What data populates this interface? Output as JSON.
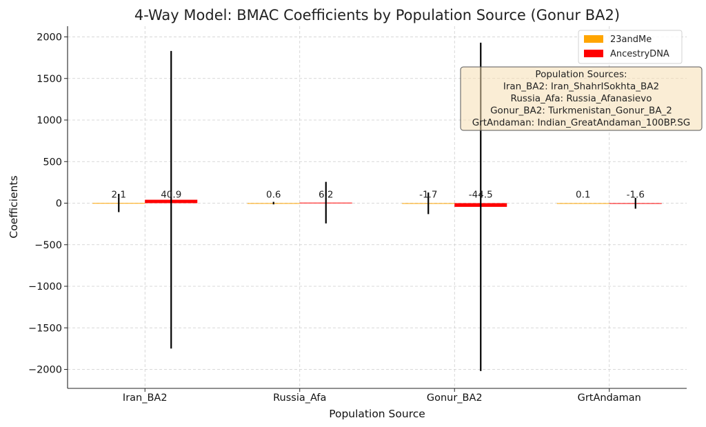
{
  "chart_data": {
    "type": "bar",
    "title": "4-Way Model: BMAC Coefficients by Population Source (Gonur BA2)",
    "xlabel": "Population Source",
    "ylabel": "Coefficients",
    "categories": [
      "Iran_BA2",
      "Russia_Afa",
      "Gonur_BA2",
      "GrtAndaman"
    ],
    "ylim": [
      -2200,
      2200
    ],
    "yticks": [
      -2000,
      -1500,
      -1000,
      -500,
      0,
      500,
      1000,
      1500,
      2000
    ],
    "ytick_labels": [
      "−2000",
      "−1500",
      "−1000",
      "−500",
      "0",
      "500",
      "1000",
      "1500",
      "2000"
    ],
    "grid": true,
    "legend_position": "top-right",
    "series": [
      {
        "name": "23andMe",
        "color": "#FFA500",
        "values": [
          2.1,
          0.6,
          -1.7,
          0.1
        ],
        "value_labels": [
          "2.1",
          "0.6",
          "-1.7",
          "0.1"
        ],
        "errors": [
          110,
          15,
          130,
          0
        ]
      },
      {
        "name": "AncestryDNA",
        "color": "#FF0000",
        "values": [
          40.9,
          6.2,
          -44.5,
          -1.6
        ],
        "value_labels": [
          "40.9",
          "6.2",
          "-44.5",
          "-1.6"
        ],
        "errors": [
          1790,
          250,
          1975,
          65
        ]
      }
    ],
    "annotation": {
      "lines": [
        "Population Sources:",
        "Iran_BA2: Iran_ShahrISokhta_BA2",
        "Russia_Afa: Russia_Afanasievo",
        "Gonur_BA2: Turkmenistan_Gonur_BA_2",
        "GrtAndaman: Indian_GreatAndaman_100BP.SG"
      ]
    }
  }
}
